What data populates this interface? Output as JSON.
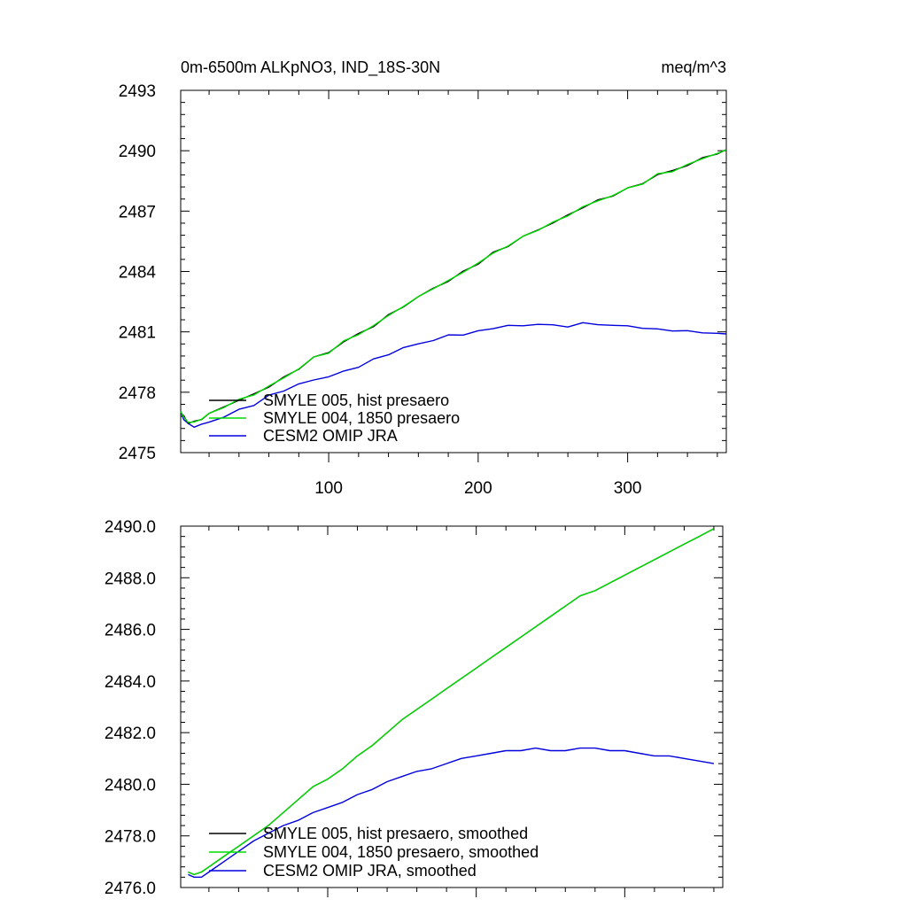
{
  "chart_data": [
    {
      "type": "line",
      "title_left": "0m-6500m ALKpNO3, IND_18S-30N",
      "title_right": "meq/m^3",
      "xlabel": "",
      "ylabel": "",
      "xlim": [
        1,
        366
      ],
      "ylim": [
        2475,
        2493
      ],
      "xticks": [
        100,
        200,
        300
      ],
      "xtick_labels": [
        "100",
        "200",
        "300"
      ],
      "yticks": [
        2475,
        2478,
        2481,
        2484,
        2487,
        2490,
        2493
      ],
      "ytick_labels": [
        "2475",
        "2478",
        "2481",
        "2484",
        "2487",
        "2490",
        "2493"
      ],
      "grid": false,
      "legend_position": "bottom-left",
      "x": [
        1,
        3,
        6,
        10,
        15,
        20,
        30,
        40,
        50,
        60,
        70,
        80,
        90,
        100,
        110,
        120,
        130,
        140,
        150,
        160,
        170,
        180,
        190,
        200,
        210,
        220,
        230,
        240,
        250,
        260,
        270,
        280,
        290,
        300,
        310,
        320,
        330,
        340,
        350,
        360,
        366
      ],
      "series": [
        {
          "name": "SMYLE 005, hist presaero",
          "color": "#000000",
          "values": [
            2477.0,
            2476.8,
            2476.5,
            2476.5,
            2476.7,
            2476.9,
            2477.3,
            2477.6,
            2477.9,
            2478.3,
            2478.7,
            2479.2,
            2479.7,
            2480.0,
            2480.5,
            2480.9,
            2481.3,
            2481.8,
            2482.3,
            2482.7,
            2483.2,
            2483.5,
            2484.0,
            2484.4,
            2484.9,
            2485.3,
            2485.7,
            2486.1,
            2486.4,
            2486.8,
            2487.2,
            2487.5,
            2487.8,
            2488.1,
            2488.4,
            2488.8,
            2489.0,
            2489.3,
            2489.6,
            2489.9,
            2490.0
          ]
        },
        {
          "name": "SMYLE 004, 1850 presaero",
          "color": "#00dd00",
          "values": [
            2477.0,
            2476.8,
            2476.5,
            2476.5,
            2476.7,
            2476.9,
            2477.3,
            2477.6,
            2477.9,
            2478.3,
            2478.7,
            2479.2,
            2479.7,
            2480.0,
            2480.5,
            2480.9,
            2481.3,
            2481.8,
            2482.3,
            2482.7,
            2483.2,
            2483.5,
            2484.0,
            2484.4,
            2484.9,
            2485.3,
            2485.7,
            2486.1,
            2486.4,
            2486.8,
            2487.2,
            2487.5,
            2487.8,
            2488.1,
            2488.4,
            2488.8,
            2489.0,
            2489.3,
            2489.6,
            2489.9,
            2490.0
          ]
        },
        {
          "name": "CESM2 OMIP JRA",
          "color": "#0000dd",
          "values": [
            2477.0,
            2476.7,
            2476.4,
            2476.3,
            2476.4,
            2476.5,
            2476.8,
            2477.1,
            2477.4,
            2477.8,
            2478.1,
            2478.4,
            2478.6,
            2478.8,
            2479.0,
            2479.3,
            2479.6,
            2479.9,
            2480.2,
            2480.4,
            2480.6,
            2480.8,
            2480.9,
            2481.0,
            2481.2,
            2481.3,
            2481.3,
            2481.4,
            2481.3,
            2481.3,
            2481.4,
            2481.4,
            2481.3,
            2481.3,
            2481.2,
            2481.1,
            2481.1,
            2481.0,
            2481.0,
            2480.9,
            2480.9
          ]
        }
      ]
    },
    {
      "type": "line",
      "title_left": "",
      "title_right": "",
      "xlabel": "",
      "ylabel": "",
      "xlim": [
        1,
        366
      ],
      "ylim": [
        2476,
        2490
      ],
      "xticks": [
        100,
        200,
        300
      ],
      "xtick_labels": [],
      "yticks": [
        2476,
        2478,
        2480,
        2482,
        2484,
        2486,
        2488,
        2490
      ],
      "ytick_labels": [
        "2476.0",
        "2478.0",
        "2480.0",
        "2482.0",
        "2484.0",
        "2486.0",
        "2488.0",
        "2490.0"
      ],
      "grid": false,
      "legend_position": "bottom-left",
      "x": [
        6,
        10,
        15,
        20,
        30,
        40,
        50,
        60,
        70,
        80,
        90,
        100,
        110,
        120,
        130,
        140,
        150,
        160,
        170,
        180,
        190,
        200,
        210,
        220,
        230,
        240,
        250,
        260,
        270,
        280,
        290,
        300,
        310,
        320,
        330,
        340,
        350,
        360
      ],
      "series": [
        {
          "name": "SMYLE 005, hist presaero, smoothed",
          "color": "#000000",
          "values": [
            2476.6,
            2476.5,
            2476.6,
            2476.8,
            2477.2,
            2477.6,
            2478.0,
            2478.4,
            2478.9,
            2479.4,
            2479.9,
            2480.2,
            2480.6,
            2481.1,
            2481.5,
            2482.0,
            2482.5,
            2482.9,
            2483.3,
            2483.7,
            2484.1,
            2484.5,
            2484.9,
            2485.3,
            2485.7,
            2486.1,
            2486.5,
            2486.9,
            2487.3,
            2487.5,
            2487.8,
            2488.1,
            2488.4,
            2488.7,
            2489.0,
            2489.3,
            2489.6,
            2489.9
          ]
        },
        {
          "name": "SMYLE 004, 1850 presaero, smoothed",
          "color": "#00dd00",
          "values": [
            2476.6,
            2476.5,
            2476.6,
            2476.8,
            2477.2,
            2477.6,
            2478.0,
            2478.4,
            2478.9,
            2479.4,
            2479.9,
            2480.2,
            2480.6,
            2481.1,
            2481.5,
            2482.0,
            2482.5,
            2482.9,
            2483.3,
            2483.7,
            2484.1,
            2484.5,
            2484.9,
            2485.3,
            2485.7,
            2486.1,
            2486.5,
            2486.9,
            2487.3,
            2487.5,
            2487.8,
            2488.1,
            2488.4,
            2488.7,
            2489.0,
            2489.3,
            2489.6,
            2489.9
          ]
        },
        {
          "name": "CESM2 OMIP JRA, smoothed",
          "color": "#0000dd",
          "values": [
            2476.5,
            2476.4,
            2476.4,
            2476.6,
            2477.0,
            2477.4,
            2477.8,
            2478.1,
            2478.4,
            2478.6,
            2478.9,
            2479.1,
            2479.3,
            2479.6,
            2479.8,
            2480.1,
            2480.3,
            2480.5,
            2480.6,
            2480.8,
            2481.0,
            2481.1,
            2481.2,
            2481.3,
            2481.3,
            2481.4,
            2481.3,
            2481.3,
            2481.4,
            2481.4,
            2481.3,
            2481.3,
            2481.2,
            2481.1,
            2481.1,
            2481.0,
            2480.9,
            2480.8
          ]
        }
      ]
    }
  ]
}
